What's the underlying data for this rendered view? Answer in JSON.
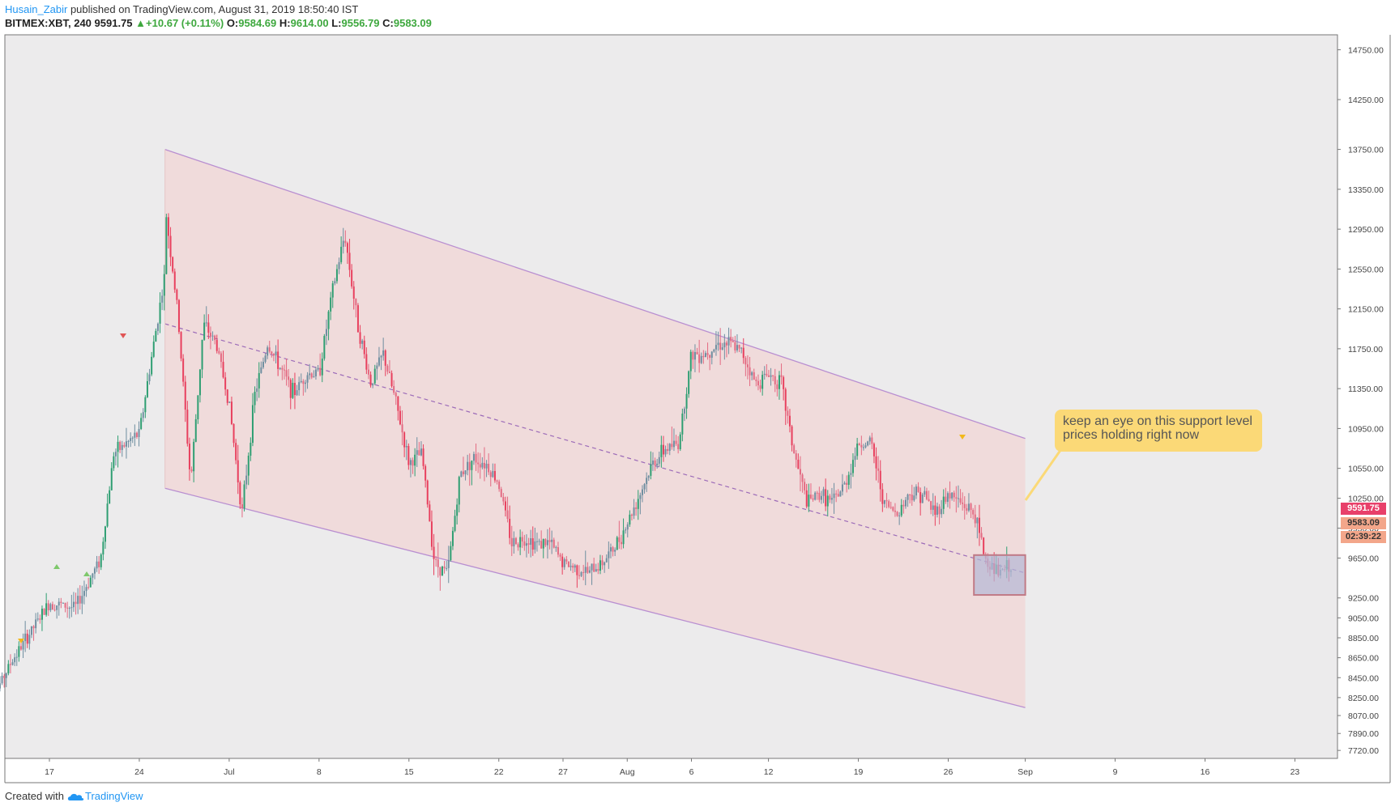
{
  "header": {
    "author": "Husain_Zabir",
    "published": " published on TradingView.com, August 31, 2019 18:50:40 IST",
    "symbol": "BITMEX:XBT, 240",
    "last": "9591.75",
    "change": "+10.67 (+0.11%)",
    "open_label": "O:",
    "open": "9584.69",
    "high_label": "H:",
    "high": "9614.00",
    "low_label": "L:",
    "low": "9556.79",
    "close_label": "C:",
    "close": "9583.09"
  },
  "callout": {
    "text": "keep an eye on this support level prices holding right now"
  },
  "price_tags": {
    "last": "9591.75",
    "close": "9583.09",
    "countdown": "02:39:22"
  },
  "footer": {
    "created_with": "Created with",
    "brand": "TradingView"
  },
  "colors": {
    "up": "#26a69a",
    "down": "#ef5350",
    "channel": "#b98fd1",
    "channel_fill": "#f2d6d6",
    "callout": "#fbd977",
    "highlight_box": "#b3b8d6"
  },
  "chart_data": {
    "type": "candlestick",
    "ylim": [
      7640,
      14900
    ],
    "y_ticks": [
      "14750.00",
      "14250.00",
      "13750.00",
      "13350.00",
      "12950.00",
      "12550.00",
      "12150.00",
      "11750.00",
      "11350.00",
      "10950.00",
      "10550.00",
      "10250.00",
      "9950.00",
      "9650.00",
      "9250.00",
      "9050.00",
      "8850.00",
      "8650.00",
      "8450.00",
      "8250.00",
      "8070.00",
      "7890.00",
      "7720.00"
    ],
    "x_ticks": [
      "17",
      "24",
      "Jul",
      "8",
      "15",
      "22",
      "27",
      "Aug",
      "6",
      "12",
      "19",
      "26",
      "Sep",
      "9",
      "16",
      "23"
    ],
    "price_points": [
      {
        "date": "Jun 12",
        "price": 8100
      },
      {
        "date": "Jun 14",
        "price": 8600
      },
      {
        "date": "Jun 17",
        "price": 9200
      },
      {
        "date": "Jun 19",
        "price": 9150
      },
      {
        "date": "Jun 21",
        "price": 9650
      },
      {
        "date": "Jun 22",
        "price": 10700
      },
      {
        "date": "Jun 24",
        "price": 10900
      },
      {
        "date": "Jun 26",
        "price": 12500
      },
      {
        "date": "Jun 26",
        "price": 13200
      },
      {
        "date": "Jun 27",
        "price": 12100
      },
      {
        "date": "Jun 28",
        "price": 10400
      },
      {
        "date": "Jun 29",
        "price": 12000
      },
      {
        "date": "Jun 30",
        "price": 11800
      },
      {
        "date": "Jul 1",
        "price": 11200
      },
      {
        "date": "Jul 2",
        "price": 10100
      },
      {
        "date": "Jul 3",
        "price": 11300
      },
      {
        "date": "Jul 4",
        "price": 11800
      },
      {
        "date": "Jul 6",
        "price": 11300
      },
      {
        "date": "Jul 7",
        "price": 11500
      },
      {
        "date": "Jul 8",
        "price": 11500
      },
      {
        "date": "Jul 9",
        "price": 12300
      },
      {
        "date": "Jul 10",
        "price": 12900
      },
      {
        "date": "Jul 11",
        "price": 12000
      },
      {
        "date": "Jul 12",
        "price": 11400
      },
      {
        "date": "Jul 13",
        "price": 11700
      },
      {
        "date": "Jul 14",
        "price": 11200
      },
      {
        "date": "Jul 15",
        "price": 10600
      },
      {
        "date": "Jul 16",
        "price": 10700
      },
      {
        "date": "Jul 17",
        "price": 9600
      },
      {
        "date": "Jul 18",
        "price": 9500
      },
      {
        "date": "Jul 19",
        "price": 10500
      },
      {
        "date": "Jul 20",
        "price": 10650
      },
      {
        "date": "Jul 21",
        "price": 10600
      },
      {
        "date": "Jul 22",
        "price": 10400
      },
      {
        "date": "Jul 23",
        "price": 9800
      },
      {
        "date": "Jul 24",
        "price": 9850
      },
      {
        "date": "Jul 25",
        "price": 9800
      },
      {
        "date": "Jul 26",
        "price": 9800
      },
      {
        "date": "Jul 27",
        "price": 9600
      },
      {
        "date": "Jul 28",
        "price": 9550
      },
      {
        "date": "Jul 29",
        "price": 9500
      },
      {
        "date": "Jul 30",
        "price": 9600
      },
      {
        "date": "Jul 31",
        "price": 9750
      },
      {
        "date": "Aug 1",
        "price": 10000
      },
      {
        "date": "Aug 2",
        "price": 10300
      },
      {
        "date": "Aug 3",
        "price": 10600
      },
      {
        "date": "Aug 4",
        "price": 10750
      },
      {
        "date": "Aug 5",
        "price": 10800
      },
      {
        "date": "Aug 6",
        "price": 11700
      },
      {
        "date": "Aug 7",
        "price": 11700
      },
      {
        "date": "Aug 8",
        "price": 11800
      },
      {
        "date": "Aug 9",
        "price": 11800
      },
      {
        "date": "Aug 10",
        "price": 11700
      },
      {
        "date": "Aug 11",
        "price": 11400
      },
      {
        "date": "Aug 12",
        "price": 11500
      },
      {
        "date": "Aug 13",
        "price": 11400
      },
      {
        "date": "Aug 14",
        "price": 10700
      },
      {
        "date": "Aug 15",
        "price": 10200
      },
      {
        "date": "Aug 16",
        "price": 10300
      },
      {
        "date": "Aug 17",
        "price": 10200
      },
      {
        "date": "Aug 18",
        "price": 10400
      },
      {
        "date": "Aug 19",
        "price": 10800
      },
      {
        "date": "Aug 20",
        "price": 10800
      },
      {
        "date": "Aug 21",
        "price": 10200
      },
      {
        "date": "Aug 22",
        "price": 10100
      },
      {
        "date": "Aug 23",
        "price": 10300
      },
      {
        "date": "Aug 24",
        "price": 10300
      },
      {
        "date": "Aug 25",
        "price": 10100
      },
      {
        "date": "Aug 26",
        "price": 10300
      },
      {
        "date": "Aug 27",
        "price": 10200
      },
      {
        "date": "Aug 28",
        "price": 10100
      },
      {
        "date": "Aug 29",
        "price": 9600
      },
      {
        "date": "Aug 30",
        "price": 9500
      },
      {
        "date": "Aug 31",
        "price": 9590
      }
    ],
    "channel": {
      "upper": [
        {
          "date": "Jun 26",
          "price": 13750
        },
        {
          "date": "Sep 1",
          "price": 10850
        }
      ],
      "mid": [
        {
          "date": "Jun 26",
          "price": 12000
        },
        {
          "date": "Sep 1",
          "price": 9500
        }
      ],
      "lower": [
        {
          "date": "Jun 26",
          "price": 10350
        },
        {
          "date": "Sep 1",
          "price": 8150
        }
      ]
    },
    "support_box": {
      "date_from": "Aug 28",
      "date_to": "Sep 1",
      "price_low": 9280,
      "price_high": 9680
    }
  }
}
